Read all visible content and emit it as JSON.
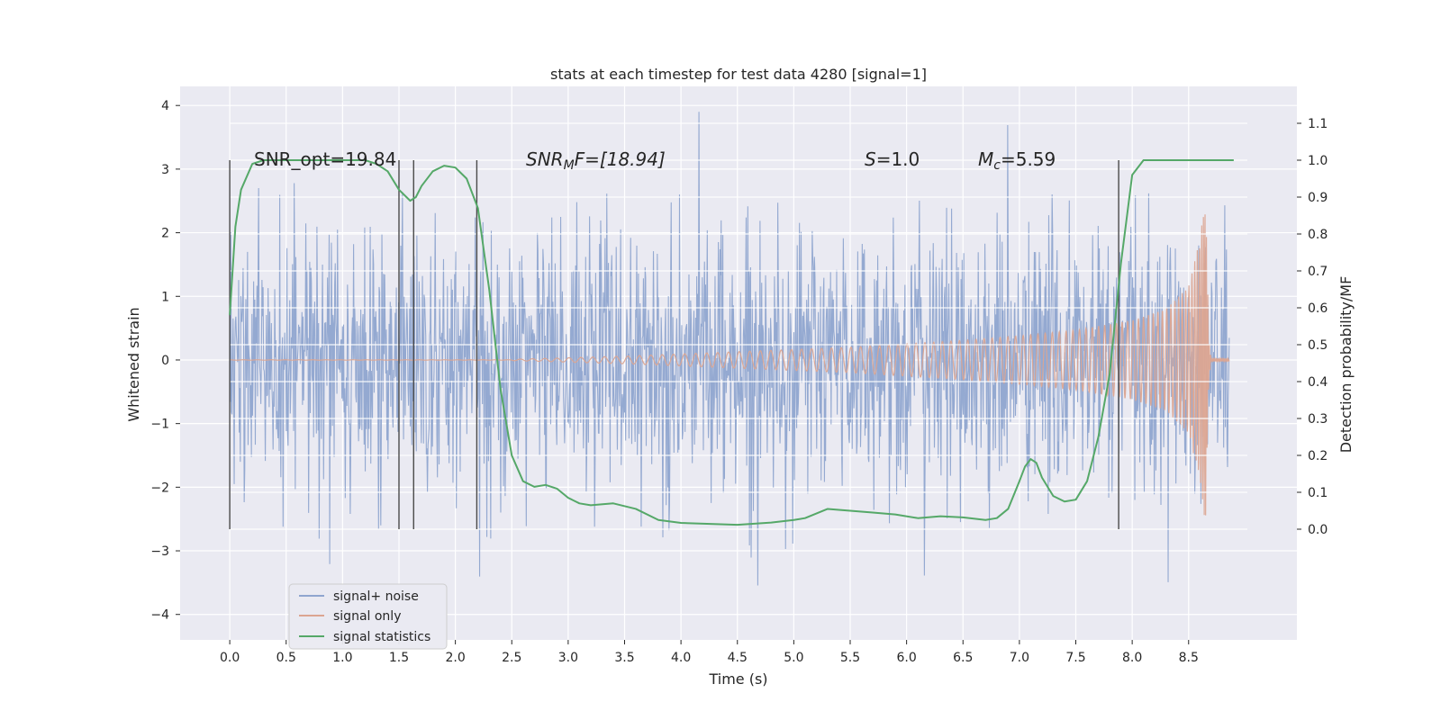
{
  "chart_data": {
    "type": "line",
    "title": "stats at each timestep for test data 4280 [signal=1]",
    "xlabel": "Time (s)",
    "ylabel": "Whitened strain",
    "ylabel_right": "Detection probability/MF",
    "xlim": [
      -0.44,
      9.46
    ],
    "ylim": [
      -4.4,
      4.3
    ],
    "ylim_right": [
      -0.3,
      1.2
    ],
    "x_ticks": [
      "0.0",
      "0.5",
      "1.0",
      "1.5",
      "2.0",
      "2.5",
      "3.0",
      "3.5",
      "4.0",
      "4.5",
      "5.0",
      "5.5",
      "6.0",
      "6.5",
      "7.0",
      "7.5",
      "8.0",
      "8.5"
    ],
    "y_ticks": [
      "4",
      "3",
      "2",
      "1",
      "0",
      "−1",
      "−2",
      "−3",
      "−4"
    ],
    "y_right_ticks": [
      "1.1",
      "1.0",
      "0.9",
      "0.8",
      "0.7",
      "0.6",
      "0.5",
      "0.4",
      "0.3",
      "0.2",
      "0.1",
      "0.0"
    ],
    "grid": true,
    "legend_position": "lower-left",
    "annotations": {
      "snr_opt": "SNR_opt=19.84",
      "snr_mf_prefix": "SNR",
      "snr_mf_sub": "M",
      "snr_mf_suffix": "F=[18.94]",
      "s_var": "S",
      "s_val": "=1.0",
      "mc_var": "M",
      "mc_sub": "c",
      "mc_val": "=5.59"
    },
    "vlines_x": [
      0.0,
      1.5,
      1.63,
      2.19,
      7.88
    ],
    "series": [
      {
        "name": "signal+ noise",
        "color": "#8fa5cf",
        "description": "whitened noisy strain, approx. Gaussian, amplitude spikes up to about ±3.9",
        "x_range": [
          0.0,
          8.86
        ]
      },
      {
        "name": "signal only",
        "color": "#dca591",
        "description": "chirp, amplitude grows from ~0 at t=2.5 to ~2.6 peak near t=8.6, merger at 8.65, decays by 8.7",
        "x_range": [
          0.0,
          8.86
        ],
        "envelope": [
          [
            2.5,
            0.01
          ],
          [
            3.5,
            0.06
          ],
          [
            4.5,
            0.13
          ],
          [
            5.5,
            0.2
          ],
          [
            6.5,
            0.31
          ],
          [
            7.0,
            0.38
          ],
          [
            7.5,
            0.47
          ],
          [
            8.0,
            0.62
          ],
          [
            8.3,
            0.8
          ],
          [
            8.5,
            1.15
          ],
          [
            8.6,
            1.9
          ],
          [
            8.65,
            2.6
          ],
          [
            8.68,
            0.3
          ],
          [
            8.7,
            0.03
          ]
        ]
      },
      {
        "name": "signal statistics",
        "color": "#55a868",
        "axis": "right",
        "x": [
          0.0,
          0.05,
          0.1,
          0.2,
          0.3,
          0.5,
          0.8,
          1.0,
          1.2,
          1.3,
          1.4,
          1.5,
          1.6,
          1.65,
          1.7,
          1.8,
          1.9,
          2.0,
          2.1,
          2.2,
          2.3,
          2.4,
          2.5,
          2.6,
          2.7,
          2.8,
          2.9,
          3.0,
          3.1,
          3.2,
          3.4,
          3.6,
          3.8,
          4.0,
          4.2,
          4.5,
          4.8,
          5.0,
          5.1,
          5.3,
          5.5,
          5.7,
          5.9,
          6.1,
          6.3,
          6.5,
          6.7,
          6.8,
          6.9,
          7.0,
          7.05,
          7.1,
          7.15,
          7.2,
          7.3,
          7.4,
          7.5,
          7.6,
          7.7,
          7.8,
          7.9,
          8.0,
          8.1,
          8.3,
          8.6,
          8.9
        ],
        "values": [
          0.58,
          0.82,
          0.92,
          0.99,
          1.0,
          1.0,
          1.0,
          1.0,
          1.0,
          0.99,
          0.97,
          0.92,
          0.89,
          0.9,
          0.93,
          0.97,
          0.985,
          0.98,
          0.95,
          0.87,
          0.65,
          0.38,
          0.2,
          0.13,
          0.115,
          0.12,
          0.11,
          0.085,
          0.07,
          0.065,
          0.07,
          0.055,
          0.025,
          0.017,
          0.015,
          0.012,
          0.018,
          0.025,
          0.03,
          0.055,
          0.05,
          0.045,
          0.04,
          0.03,
          0.035,
          0.032,
          0.025,
          0.03,
          0.055,
          0.13,
          0.17,
          0.19,
          0.18,
          0.14,
          0.09,
          0.075,
          0.08,
          0.13,
          0.25,
          0.42,
          0.72,
          0.96,
          1.0,
          1.0,
          1.0,
          1.0
        ]
      }
    ]
  }
}
